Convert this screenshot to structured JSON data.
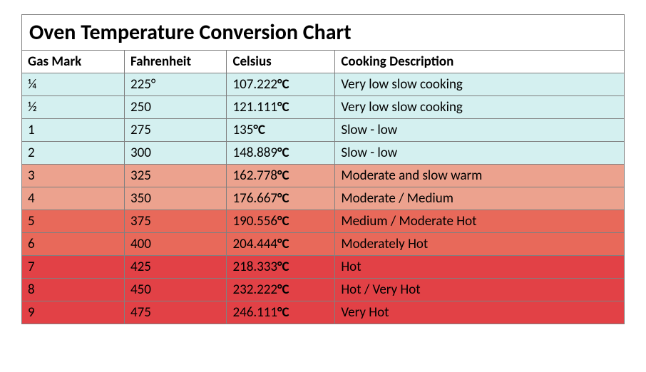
{
  "title": "Oven Temperature Conversion Chart",
  "title_fontsize": 30,
  "header_fontsize": 19,
  "cell_fontsize": 19,
  "background_color": "#ffffff",
  "border_color": "#808080",
  "text_color": "#000000",
  "columns": [
    {
      "label": "Gas Mark",
      "width": "17%"
    },
    {
      "label": "Fahrenheit",
      "width": "17%"
    },
    {
      "label": "Celsius",
      "width": "18%"
    },
    {
      "label": "Cooking Description",
      "width": "48%"
    }
  ],
  "rows": [
    {
      "gas": "¼",
      "f": "225°",
      "c": "107.222",
      "c_suffix": "°C",
      "desc": "Very low slow cooking",
      "bg": "#d4f0f0"
    },
    {
      "gas": "½",
      "f": "250",
      "c": "121.111",
      "c_suffix": "°C",
      "desc": "Very low slow cooking",
      "bg": "#d4f0f0"
    },
    {
      "gas": "1",
      "f": "275",
      "c": "135",
      "c_suffix": "°C",
      "desc": "Slow - low",
      "bg": "#d4f0f0"
    },
    {
      "gas": "2",
      "f": "300",
      "c": "148.889",
      "c_suffix": "°C",
      "desc": "Slow - low",
      "bg": "#d4f0f0"
    },
    {
      "gas": "3",
      "f": "325",
      "c": "162.778",
      "c_suffix": "°C",
      "desc": "Moderate and slow warm",
      "bg": "#eca28e"
    },
    {
      "gas": "4",
      "f": "350",
      "c": "176.667",
      "c_suffix": "°C",
      "desc": "Moderate / Medium",
      "bg": "#eca28e"
    },
    {
      "gas": "5",
      "f": "375",
      "c": "190.556",
      "c_suffix": "°C",
      "desc": "Medium / Moderate Hot",
      "bg": "#e8695a"
    },
    {
      "gas": "6",
      "f": "400",
      "c": "204.444",
      "c_suffix": "°C",
      "desc": "Moderately Hot",
      "bg": "#e8695a"
    },
    {
      "gas": "7",
      "f": "425",
      "c": "218.333",
      "c_suffix": "°C",
      "desc": "Hot",
      "bg": "#e24146"
    },
    {
      "gas": "8",
      "f": "450",
      "c": "232.222",
      "c_suffix": "°C",
      "desc": "Hot / Very Hot",
      "bg": "#e24146"
    },
    {
      "gas": "9",
      "f": "475",
      "c": "246.111",
      "c_suffix": "°C",
      "desc": "Very Hot",
      "bg": "#e24146"
    }
  ]
}
